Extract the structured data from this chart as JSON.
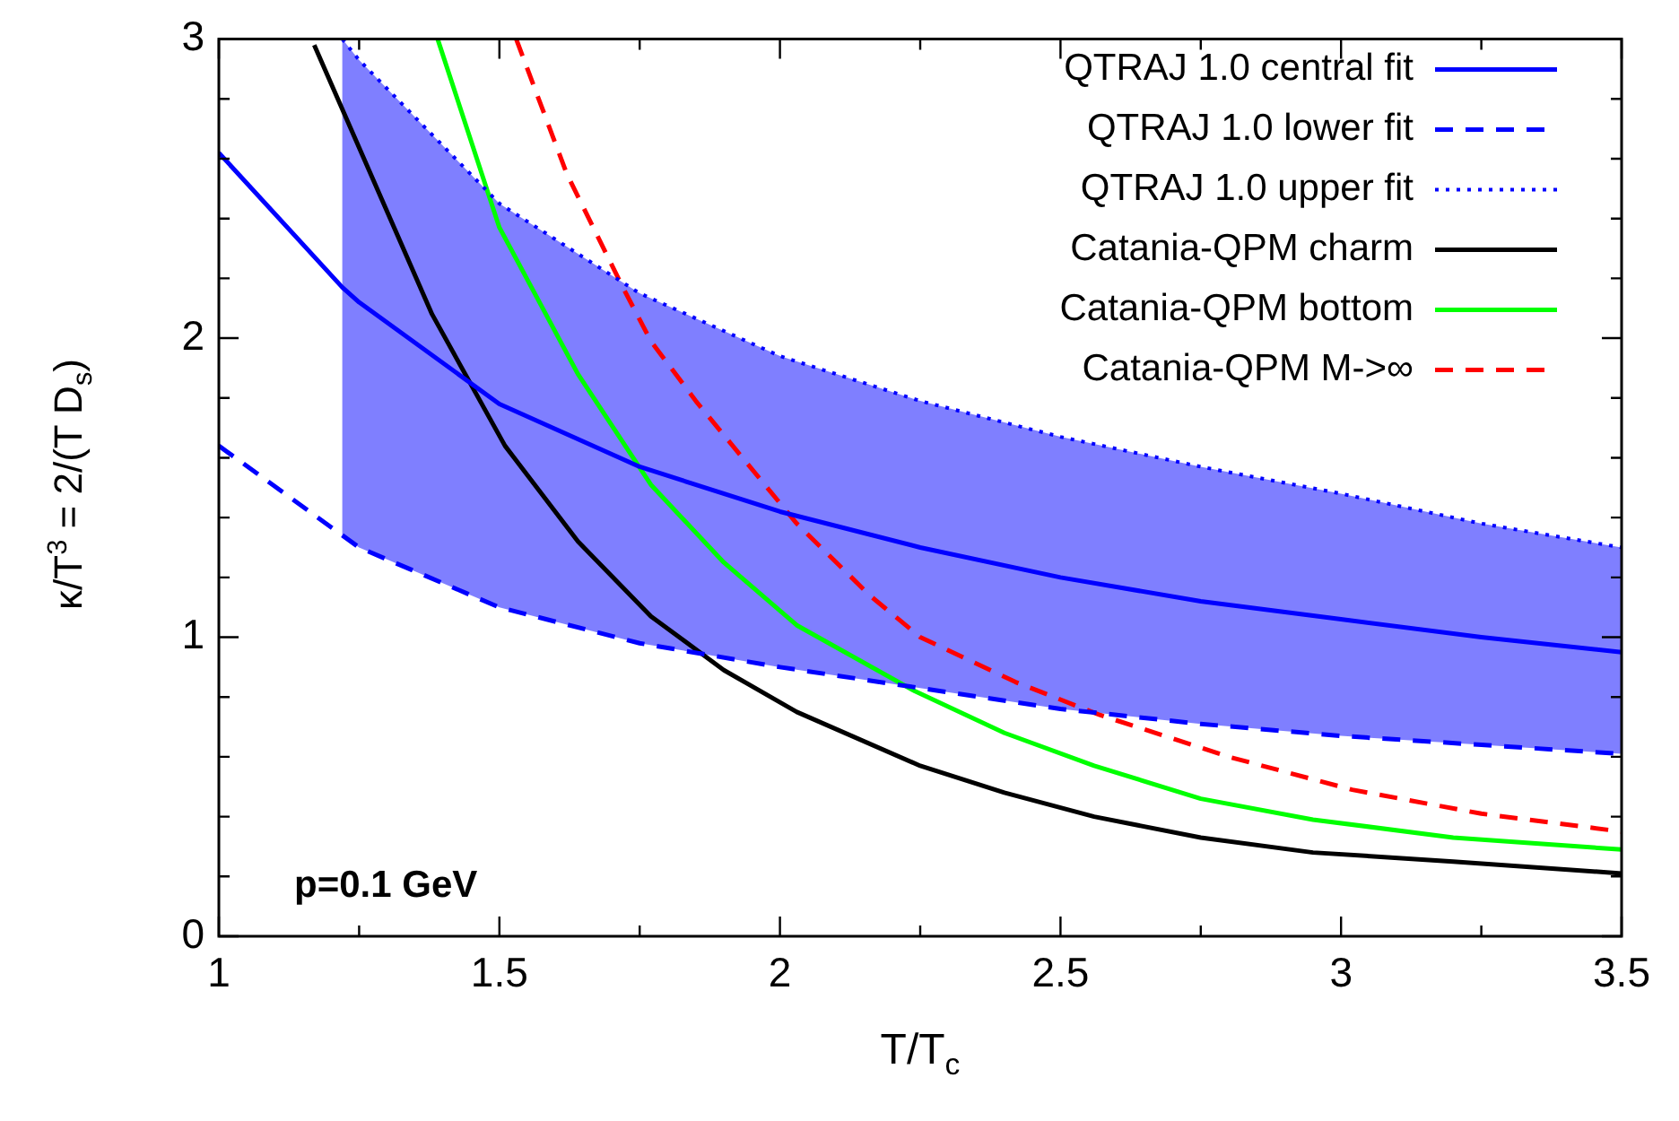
{
  "chart_data": {
    "type": "line",
    "xlabel": "T/T$_{c}$",
    "ylabel": "κ/T$^{3}$ = 2/(T D$_{s}$)",
    "xlim": [
      1,
      3.5
    ],
    "ylim": [
      0,
      3
    ],
    "xticks": [
      1,
      {
        "value": 1.25,
        "label": null
      },
      1.5,
      {
        "value": 1.75,
        "label": null
      },
      2,
      {
        "value": 2.25,
        "label": null
      },
      2.5,
      {
        "value": 2.75,
        "label": null
      },
      3,
      {
        "value": 3.25,
        "label": null
      },
      3.5
    ],
    "yticks": [
      0,
      {
        "value": 0.2,
        "label": null
      },
      {
        "value": 0.4,
        "label": null
      },
      {
        "value": 0.6,
        "label": null
      },
      {
        "value": 0.8,
        "label": null
      },
      1,
      {
        "value": 1.2,
        "label": null
      },
      {
        "value": 1.4,
        "label": null
      },
      {
        "value": 1.6,
        "label": null
      },
      {
        "value": 1.8,
        "label": null
      },
      2,
      {
        "value": 2.2,
        "label": null
      },
      {
        "value": 2.4,
        "label": null
      },
      {
        "value": 2.6,
        "label": null
      },
      {
        "value": 2.8,
        "label": null
      },
      3
    ],
    "grid": false,
    "legend": "top right",
    "marker": "none",
    "annotations": [
      "p=0.1 GeV"
    ],
    "series": [
      {
        "name": "QTRAJ 1.0 central fit",
        "color": "#0000ff",
        "line_style": "solid",
        "x": [
          1,
          1.22,
          1.25,
          1.5,
          1.75,
          2,
          2.25,
          2.5,
          2.75,
          3,
          3.25,
          3.5
        ],
        "values": [
          2.62,
          2.17,
          2.12,
          1.78,
          1.57,
          1.42,
          1.3,
          1.2,
          1.12,
          1.06,
          1.0,
          0.95
        ]
      },
      {
        "name": "QTRAJ 1.0 lower fit",
        "color": "#0000ff",
        "line_style": "dashed",
        "x": [
          1,
          1.25,
          1.5,
          1.75,
          2,
          2.25,
          2.5,
          2.75,
          3,
          3.25,
          3.5
        ],
        "values": [
          1.64,
          1.3,
          1.1,
          0.98,
          0.9,
          0.83,
          0.76,
          0.71,
          0.67,
          0.64,
          0.61
        ]
      },
      {
        "name": "QTRAJ 1.0 upper fit",
        "color": "#0000ff",
        "line_style": "dotted",
        "x": [
          1.22,
          1.25,
          1.5,
          1.75,
          2,
          2.25,
          2.5,
          2.75,
          3,
          3.25,
          3.5
        ],
        "values": [
          3.0,
          2.93,
          2.45,
          2.15,
          1.94,
          1.79,
          1.67,
          1.57,
          1.48,
          1.38,
          1.3
        ],
        "lower": [
          1.34,
          1.3,
          1.1,
          0.98,
          0.9,
          0.83,
          0.76,
          0.71,
          0.67,
          0.64,
          0.61
        ],
        "upper": [
          3.0,
          2.93,
          2.45,
          2.15,
          1.94,
          1.79,
          1.67,
          1.57,
          1.48,
          1.38,
          1.3
        ]
      },
      {
        "name": "Catania-QPM charm",
        "color": "#000000",
        "line_style": "solid",
        "x": [
          1.17,
          1.38,
          1.51,
          1.64,
          1.77,
          1.9,
          2.03,
          2.25,
          2.4,
          2.56,
          2.75,
          2.95,
          3.2,
          3.5
        ],
        "values": [
          2.98,
          2.08,
          1.64,
          1.32,
          1.07,
          0.89,
          0.75,
          0.57,
          0.48,
          0.4,
          0.33,
          0.28,
          0.25,
          0.21
        ]
      },
      {
        "name": "Catania-QPM bottom",
        "color": "#00ff00",
        "line_style": "solid",
        "x": [
          1.39,
          1.5,
          1.64,
          1.77,
          1.9,
          2.03,
          2.24,
          2.4,
          2.56,
          2.75,
          2.95,
          3.2,
          3.5
        ],
        "values": [
          3.0,
          2.37,
          1.88,
          1.51,
          1.25,
          1.04,
          0.82,
          0.68,
          0.57,
          0.46,
          0.39,
          0.33,
          0.29
        ]
      },
      {
        "name": "Catania-QPM M->∞",
        "color": "#ff0000",
        "line_style": "dashed",
        "x": [
          1.53,
          1.62,
          1.72,
          1.77,
          1.85,
          2.03,
          2.16,
          2.25,
          2.42,
          2.57,
          2.8,
          3.02,
          3.25,
          3.5
        ],
        "values": [
          3.0,
          2.55,
          2.17,
          1.99,
          1.79,
          1.38,
          1.14,
          1.0,
          0.85,
          0.74,
          0.6,
          0.49,
          0.41,
          0.35
        ]
      }
    ]
  }
}
